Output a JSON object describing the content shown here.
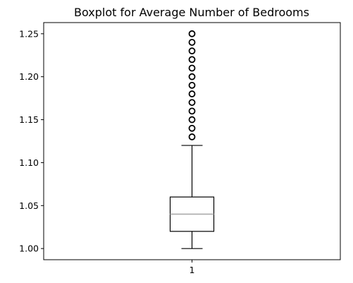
{
  "chart_data": {
    "type": "boxplot",
    "title": "Boxplot for Average Number of Bedrooms",
    "xlabel": "",
    "ylabel": "",
    "categories": [
      "1"
    ],
    "ylim": [
      0.987,
      1.263
    ],
    "yticks": [
      "1.00",
      "1.05",
      "1.10",
      "1.15",
      "1.20",
      "1.25"
    ],
    "grid": false,
    "boxes": [
      {
        "category": "1",
        "whisker_low": 1.0,
        "q1": 1.02,
        "median": 1.04,
        "q3": 1.06,
        "whisker_high": 1.12,
        "outliers": [
          1.13,
          1.14,
          1.15,
          1.16,
          1.17,
          1.18,
          1.19,
          1.2,
          1.21,
          1.22,
          1.23,
          1.24,
          1.25
        ]
      }
    ],
    "colors": {
      "box": "#000000",
      "median": "#aaaaaa",
      "outlier": "#000000"
    }
  }
}
